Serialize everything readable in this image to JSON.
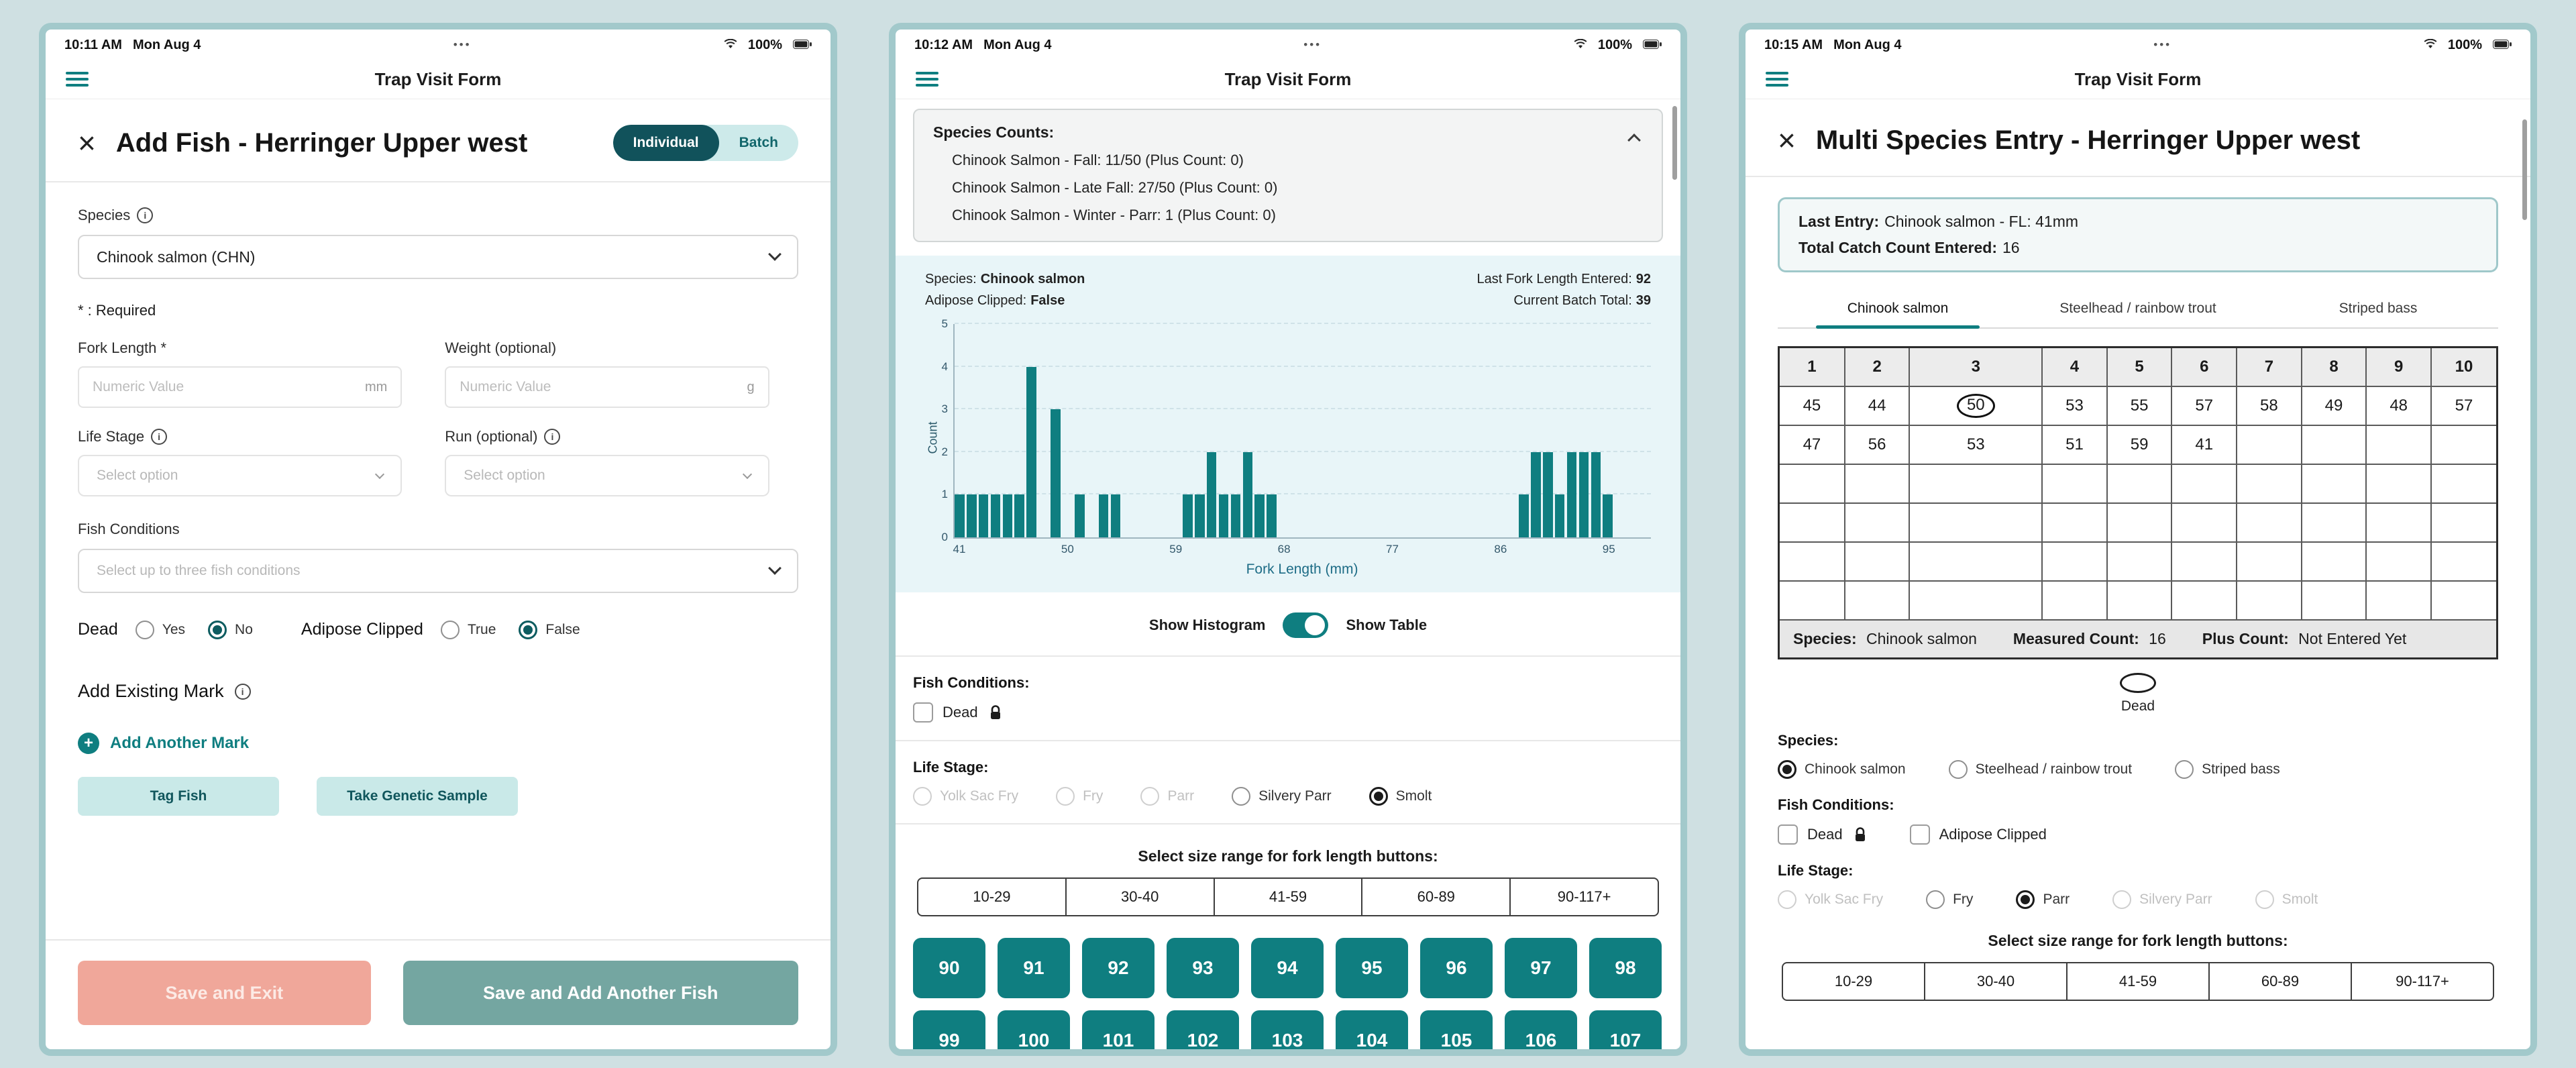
{
  "chrome": {
    "dots": "•••",
    "info_glyph": "i",
    "plus_glyph": "+"
  },
  "panels": {
    "left": {
      "status": {
        "time": "10:11 AM",
        "date": "Mon Aug 4",
        "battery": "100%"
      },
      "nav_title": "Trap Visit Form",
      "close_label": "×",
      "title": "Add Fish - Herringer Upper west",
      "mode_toggle": {
        "options": [
          "Individual",
          "Batch"
        ],
        "selected": "Individual"
      },
      "species": {
        "label": "Species",
        "value": "Chinook salmon (CHN)"
      },
      "required_note": "* : Required",
      "fork_length": {
        "label": "Fork Length *",
        "placeholder": "Numeric Value",
        "unit": "mm"
      },
      "weight": {
        "label": "Weight (optional)",
        "placeholder": "Numeric Value",
        "unit": "g"
      },
      "life_stage": {
        "label": "Life Stage",
        "placeholder": "Select option"
      },
      "run": {
        "label": "Run (optional)",
        "placeholder": "Select option"
      },
      "fish_conditions": {
        "label": "Fish Conditions",
        "placeholder": "Select up to three fish conditions"
      },
      "dead": {
        "label": "Dead",
        "options": [
          "Yes",
          "No"
        ],
        "selected": "No",
        "disabled": []
      },
      "adipose": {
        "label": "Adipose Clipped",
        "options": [
          "True",
          "False"
        ],
        "selected": "False",
        "disabled": []
      },
      "add_existing_mark_label": "Add Existing Mark",
      "add_another_mark_label": "Add Another Mark",
      "tag_fish_label": "Tag Fish",
      "genetic_sample_label": "Take Genetic Sample",
      "save_exit_label": "Save and Exit",
      "save_add_label": "Save and Add Another Fish"
    },
    "middle": {
      "status": {
        "time": "10:12 AM",
        "date": "Mon Aug 4",
        "battery": "100%"
      },
      "nav_title": "Trap Visit Form",
      "species_counts": {
        "title": "Species Counts:",
        "lines": [
          "Chinook Salmon - Fall: 11/50 (Plus Count: 0)",
          "Chinook Salmon - Late Fall: 27/50 (Plus Count: 0)",
          "Chinook Salmon - Winter - Parr: 1 (Plus Count: 0)"
        ]
      },
      "batch_meta": {
        "species_label": "Species:",
        "species_value": "Chinook salmon",
        "adipose_label": "Adipose Clipped:",
        "adipose_value": "False",
        "last_fl_label": "Last Fork Length Entered:",
        "last_fl_value": "92",
        "batch_total_label": "Current Batch Total:",
        "batch_total_value": "39"
      },
      "chart_data": {
        "type": "bar",
        "title": "",
        "xlabel": "Fork Length (mm)",
        "ylabel": "Count",
        "x_domain": [
          41,
          98
        ],
        "x_ticks": [
          41,
          50,
          59,
          68,
          77,
          86,
          95
        ],
        "ylim": [
          0,
          5
        ],
        "y_ticks": [
          0,
          1,
          2,
          3,
          4,
          5
        ],
        "grid": true,
        "legend_position": "none",
        "bar_color": "#0f7e80",
        "bins": [
          {
            "x": 41,
            "count": 1
          },
          {
            "x": 42,
            "count": 1
          },
          {
            "x": 43,
            "count": 1
          },
          {
            "x": 44,
            "count": 1
          },
          {
            "x": 45,
            "count": 1
          },
          {
            "x": 46,
            "count": 1
          },
          {
            "x": 47,
            "count": 4
          },
          {
            "x": 49,
            "count": 3
          },
          {
            "x": 51,
            "count": 1
          },
          {
            "x": 53,
            "count": 1
          },
          {
            "x": 54,
            "count": 1
          },
          {
            "x": 60,
            "count": 1
          },
          {
            "x": 61,
            "count": 1
          },
          {
            "x": 62,
            "count": 2
          },
          {
            "x": 63,
            "count": 1
          },
          {
            "x": 64,
            "count": 1
          },
          {
            "x": 65,
            "count": 2
          },
          {
            "x": 66,
            "count": 1
          },
          {
            "x": 67,
            "count": 1
          },
          {
            "x": 88,
            "count": 1
          },
          {
            "x": 89,
            "count": 2
          },
          {
            "x": 90,
            "count": 2
          },
          {
            "x": 91,
            "count": 1
          },
          {
            "x": 92,
            "count": 2
          },
          {
            "x": 93,
            "count": 2
          },
          {
            "x": 94,
            "count": 2
          },
          {
            "x": 95,
            "count": 1
          }
        ]
      },
      "view_toggle": {
        "left_label": "Show Histogram",
        "right_label": "Show Table",
        "state": "histogram"
      },
      "fish_conditions": {
        "label": "Fish Conditions:",
        "checkboxes": [
          {
            "label": "Dead",
            "checked": false,
            "locked": true
          }
        ]
      },
      "life_stage": {
        "label": "Life Stage:",
        "options": [
          "Yolk Sac Fry",
          "Fry",
          "Parr",
          "Silvery Parr",
          "Smolt"
        ],
        "selected": "Smolt",
        "disabled": [
          "Yolk Sac Fry",
          "Fry",
          "Parr"
        ]
      },
      "size_range": {
        "label": "Select size range for fork length buttons:",
        "options": [
          "10-29",
          "30-40",
          "41-59",
          "60-89",
          "90-117+"
        ]
      },
      "fork_buttons": {
        "visible": [
          "90",
          "91",
          "92",
          "93",
          "94",
          "95",
          "96",
          "97",
          "98"
        ],
        "partial": [
          "99",
          "100",
          "101",
          "102",
          "103",
          "104",
          "105",
          "106",
          "107"
        ]
      }
    },
    "right": {
      "status": {
        "time": "10:15 AM",
        "date": "Mon Aug 4",
        "battery": "100%"
      },
      "nav_title": "Trap Visit Form",
      "close_label": "×",
      "title": "Multi Species Entry - Herringer Upper west",
      "summary": {
        "last_entry_label": "Last Entry:",
        "last_entry_value": "Chinook salmon  - FL: 41mm",
        "total_label": "Total Catch Count Entered:",
        "total_value": "16"
      },
      "tabs": {
        "options": [
          "Chinook salmon",
          "Steelhead / rainbow trout",
          "Striped bass"
        ],
        "active": "Chinook salmon"
      },
      "grid": {
        "headers": [
          "1",
          "2",
          "3",
          "4",
          "5",
          "6",
          "7",
          "8",
          "9",
          "10"
        ],
        "rows": [
          [
            "45",
            "44",
            "50",
            "53",
            "55",
            "57",
            "58",
            "49",
            "48",
            "57"
          ],
          [
            "47",
            "56",
            "53",
            "51",
            "59",
            "41",
            "",
            "",
            "",
            ""
          ],
          [
            "",
            "",
            "",
            "",
            "",
            "",
            "",
            "",
            "",
            ""
          ],
          [
            "",
            "",
            "",
            "",
            "",
            "",
            "",
            "",
            "",
            ""
          ],
          [
            "",
            "",
            "",
            "",
            "",
            "",
            "",
            "",
            "",
            ""
          ],
          [
            "",
            "",
            "",
            "",
            "",
            "",
            "",
            "",
            "",
            ""
          ]
        ],
        "circled": [
          [
            0,
            2
          ]
        ],
        "footer": {
          "species_label": "Species:",
          "species_value": "Chinook salmon",
          "measured_label": "Measured Count:",
          "measured_value": "16",
          "plus_label": "Plus Count:",
          "plus_value": "Not Entered Yet"
        }
      },
      "dead_legend": "Dead",
      "species_radios": {
        "label": "Species:",
        "options": [
          "Chinook salmon",
          "Steelhead / rainbow trout",
          "Striped bass"
        ],
        "selected": "Chinook salmon",
        "disabled": []
      },
      "fish_conditions": {
        "label": "Fish Conditions:",
        "checkboxes": [
          {
            "label": "Dead",
            "checked": false,
            "locked": true
          },
          {
            "label": "Adipose Clipped",
            "checked": false,
            "locked": false
          }
        ]
      },
      "life_stage": {
        "label": "Life Stage:",
        "options": [
          "Yolk Sac Fry",
          "Fry",
          "Parr",
          "Silvery Parr",
          "Smolt"
        ],
        "selected": "Parr",
        "disabled": [
          "Yolk Sac Fry",
          "Silvery Parr",
          "Smolt"
        ]
      },
      "size_range": {
        "label": "Select size range for fork length buttons:",
        "options": [
          "10-29",
          "30-40",
          "41-59",
          "60-89",
          "90-117+"
        ]
      }
    }
  }
}
